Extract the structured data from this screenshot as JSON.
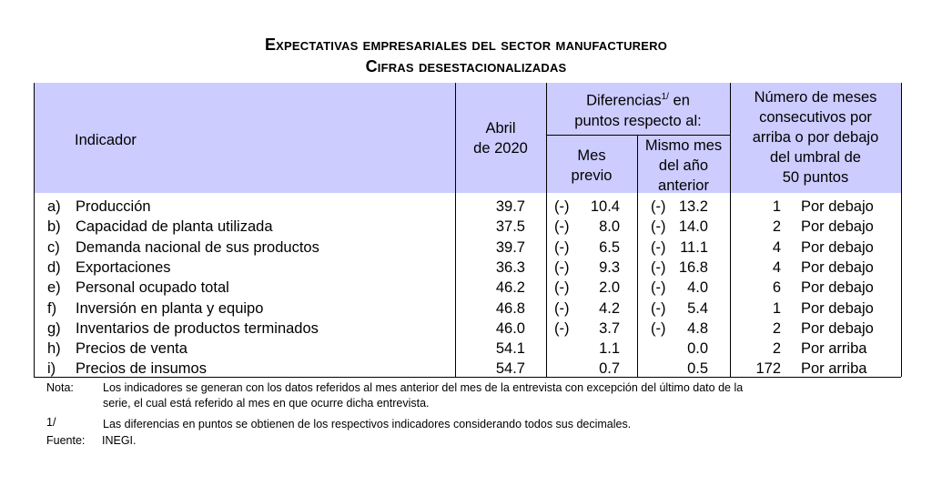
{
  "title": "Expectativas empresariales del sector manufacturero",
  "subtitle": "Cifras desestacionalizadas",
  "header": {
    "indicador": "Indicador",
    "abril_1": "Abril",
    "abril_2": "de 2020",
    "dif_1": "Diferencias",
    "dif_sup": "1/",
    "dif_1b": " en",
    "dif_2": "puntos respecto al:",
    "mes_1": "Mes",
    "mes_2": "previo",
    "mismo_1": "Mismo mes",
    "mismo_2": "del año",
    "mismo_3": "anterior",
    "num_1": "Número de meses",
    "num_2": "consecutivos por",
    "num_3": "arriba o por debajo",
    "num_4": "del umbral de",
    "num_5": "50 puntos"
  },
  "rows": [
    {
      "letter": "a)",
      "name": "Producción",
      "abril": "39.7",
      "mes_sign": "(-)",
      "mes_val": "10.4",
      "anio_sign": "(-)",
      "anio_val": "13.2",
      "count": "1",
      "dir": "Por debajo"
    },
    {
      "letter": "b)",
      "name": "Capacidad de planta utilizada",
      "abril": "37.5",
      "mes_sign": "(-)",
      "mes_val": "8.0",
      "anio_sign": "(-)",
      "anio_val": "14.0",
      "count": "2",
      "dir": "Por debajo"
    },
    {
      "letter": "c)",
      "name": "Demanda nacional de sus productos",
      "abril": "39.7",
      "mes_sign": "(-)",
      "mes_val": "6.5",
      "anio_sign": "(-)",
      "anio_val": "11.1",
      "count": "4",
      "dir": "Por debajo"
    },
    {
      "letter": "d)",
      "name": "Exportaciones",
      "abril": "36.3",
      "mes_sign": "(-)",
      "mes_val": "9.3",
      "anio_sign": "(-)",
      "anio_val": "16.8",
      "count": "4",
      "dir": "Por debajo"
    },
    {
      "letter": "e)",
      "name": "Personal ocupado total",
      "abril": "46.2",
      "mes_sign": "(-)",
      "mes_val": "2.0",
      "anio_sign": "(-)",
      "anio_val": "4.0",
      "count": "6",
      "dir": "Por debajo"
    },
    {
      "letter": "f)",
      "name": "Inversión en planta y equipo",
      "abril": "46.8",
      "mes_sign": "(-)",
      "mes_val": "4.2",
      "anio_sign": "(-)",
      "anio_val": "5.4",
      "count": "1",
      "dir": "Por debajo"
    },
    {
      "letter": "g)",
      "name": "Inventarios de productos terminados",
      "abril": "46.0",
      "mes_sign": "(-)",
      "mes_val": "3.7",
      "anio_sign": "(-)",
      "anio_val": "4.8",
      "count": "2",
      "dir": "Por debajo"
    },
    {
      "letter": "h)",
      "name": "Precios de venta",
      "abril": "54.1",
      "mes_sign": "",
      "mes_val": "1.1",
      "anio_sign": "",
      "anio_val": "0.0",
      "count": "2",
      "dir": "Por arriba"
    },
    {
      "letter": "i)",
      "name": "Precios de insumos",
      "abril": "54.7",
      "mes_sign": "",
      "mes_val": "0.7",
      "anio_sign": "",
      "anio_val": "0.5",
      "count": "172",
      "dir": "Por arriba"
    }
  ],
  "notes": {
    "nota_label": "Nota:",
    "nota_line1": "Los indicadores se generan con los datos referidos al mes anterior del mes de la entrevista con excepción del último dato de la",
    "nota_line2": "serie, el cual está referido al mes en que ocurre dicha entrevista.",
    "fn_label": "1/",
    "fn_text": "Las diferencias en puntos se obtienen de los respectivos indicadores considerando todos sus decimales.",
    "fuente_label": "Fuente:",
    "fuente_text": "INEGI."
  },
  "colors": {
    "header_bg": "#ccccff"
  }
}
